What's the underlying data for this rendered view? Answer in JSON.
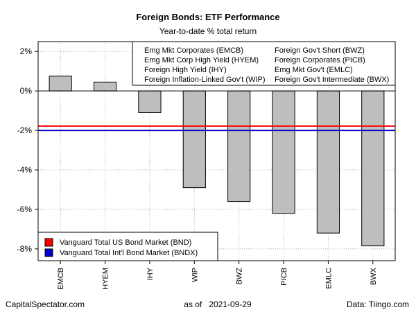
{
  "chart_data": {
    "type": "bar",
    "title": "Foreign Bonds: ETF Performance",
    "subtitle": "Year-to-date % total return",
    "categories": [
      "EMCB",
      "HYEM",
      "IHY",
      "WIP",
      "BWZ",
      "PICB",
      "EMLC",
      "BWX"
    ],
    "values": [
      0.75,
      0.45,
      -1.1,
      -4.9,
      -5.6,
      -6.2,
      -7.2,
      -7.85
    ],
    "ylim": [
      -8.6,
      2.5
    ],
    "yticks": [
      2,
      0,
      -2,
      -4,
      -6,
      -8
    ],
    "ytick_labels": [
      "2%",
      "0%",
      "-2%",
      "-4%",
      "-6%",
      "-8%"
    ],
    "grid": true,
    "bar_color": "#bebebe",
    "legend_top": {
      "placement": "top-right",
      "entries": [
        "Emg Mkt Corporates (EMCB)",
        "Emg Mkt Corp High Yield (HYEM)",
        "Foreign High Yield (IHY)",
        "Foreign Inflation-Linked Gov't (WIP)",
        "Foreign Gov't Short (BWZ)",
        "Foreign Corporates (PICB)",
        "Emg Mkt Gov't (EMLC)",
        "Foreign Gov't Intermediate (BWX)"
      ]
    },
    "reference_lines": [
      {
        "name": "Vanguard Total US Bond Market (BND)",
        "value": -1.78,
        "color": "#ff0000"
      },
      {
        "name": "Vanguard Total Int'l Bond Market (BNDX)",
        "value": -2.0,
        "color": "#0000cc"
      }
    ],
    "legend_bottom_placement": "bottom-left"
  },
  "footer": {
    "left": "CapitalSpectator.com",
    "center": "as of   2021-09-29",
    "right": "Data: Tiingo.com"
  }
}
